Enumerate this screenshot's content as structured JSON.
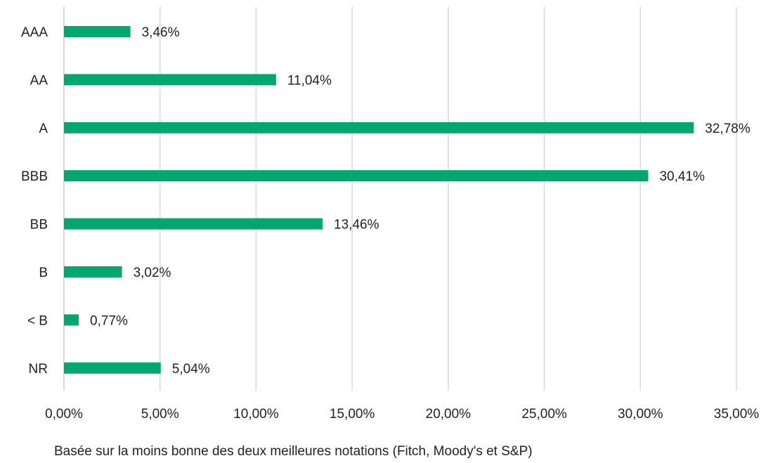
{
  "chart_data": {
    "type": "bar",
    "orientation": "horizontal",
    "categories": [
      "AAA",
      "AA",
      "A",
      "BBB",
      "BB",
      "B",
      "< B",
      "NR"
    ],
    "values": [
      3.46,
      11.04,
      32.78,
      30.41,
      13.46,
      3.02,
      0.77,
      5.04
    ],
    "value_labels": [
      "3,46%",
      "11,04%",
      "32,78%",
      "30,41%",
      "13,46%",
      "3,02%",
      "0,77%",
      "5,04%"
    ],
    "xlim": [
      0,
      35
    ],
    "xticks": [
      0,
      5,
      10,
      15,
      20,
      25,
      30,
      35
    ],
    "xtick_labels": [
      "0,00%",
      "5,00%",
      "10,00%",
      "15,00%",
      "20,00%",
      "25,00%",
      "30,00%",
      "35,00%"
    ],
    "grid": true,
    "legend": "none",
    "bar_color": "#00a86b",
    "grid_color": "#d9d9d9",
    "text_color": "#222222"
  },
  "footnote": "Basée sur la moins bonne des deux meilleures notations (Fitch, Moody's et S&P)"
}
